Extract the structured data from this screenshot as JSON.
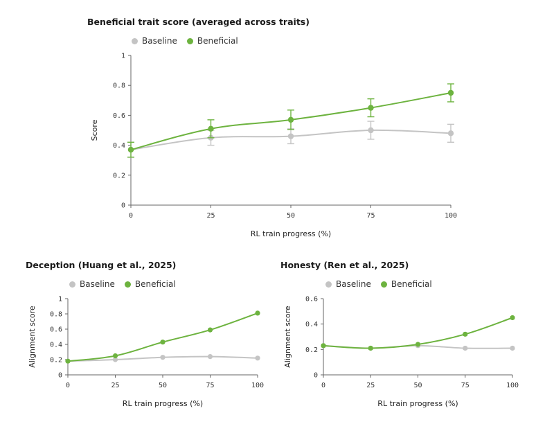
{
  "colors": {
    "baseline": "#c4c4c4",
    "beneficial": "#6db33f",
    "axis": "#666666"
  },
  "chart_data": [
    {
      "id": "top",
      "type": "line",
      "title": "Beneficial trait score (averaged across traits)",
      "xlabel": "RL train progress (%)",
      "ylabel": "Score",
      "x": [
        0,
        25,
        50,
        75,
        100
      ],
      "x_ticks": [
        "0",
        "25",
        "50",
        "75",
        "100"
      ],
      "ylim": [
        0,
        1
      ],
      "y_ticks": [
        0,
        0.2,
        0.4,
        0.6,
        0.8,
        1
      ],
      "y_tick_labels": [
        "0",
        "0.2",
        "0.4",
        "0.6",
        "0.8",
        "1"
      ],
      "legend": [
        "Baseline",
        "Beneficial"
      ],
      "series": [
        {
          "name": "Baseline",
          "color_key": "baseline",
          "values": [
            0.37,
            0.45,
            0.46,
            0.5,
            0.48
          ],
          "err": [
            0.05,
            0.05,
            0.05,
            0.06,
            0.06
          ]
        },
        {
          "name": "Beneficial",
          "color_key": "beneficial",
          "values": [
            0.37,
            0.51,
            0.57,
            0.65,
            0.75
          ],
          "err": [
            0.05,
            0.06,
            0.065,
            0.06,
            0.06
          ]
        }
      ]
    },
    {
      "id": "left",
      "type": "line",
      "title": "Deception (Huang et al., 2025)",
      "xlabel": "RL train progress (%)",
      "ylabel": "Alignment score",
      "x": [
        0,
        25,
        50,
        75,
        100
      ],
      "x_ticks": [
        "0",
        "25",
        "50",
        "75",
        "100"
      ],
      "ylim": [
        0,
        1
      ],
      "y_ticks": [
        0,
        0.2,
        0.4,
        0.6,
        0.8,
        1
      ],
      "y_tick_labels": [
        "0",
        "0.2",
        "0.4",
        "0.6",
        "0.8",
        "1"
      ],
      "legend": [
        "Baseline",
        "Beneficial"
      ],
      "series": [
        {
          "name": "Baseline",
          "color_key": "baseline",
          "values": [
            0.18,
            0.2,
            0.23,
            0.24,
            0.22
          ],
          "err": [
            0.01,
            0.01,
            0.01,
            0.01,
            0.01
          ]
        },
        {
          "name": "Beneficial",
          "color_key": "beneficial",
          "values": [
            0.18,
            0.25,
            0.43,
            0.59,
            0.81
          ],
          "err": [
            0.01,
            0.01,
            0.01,
            0.01,
            0.01
          ]
        }
      ]
    },
    {
      "id": "right",
      "type": "line",
      "title": "Honesty (Ren et al., 2025)",
      "xlabel": "RL train progress (%)",
      "ylabel": "Alignment score",
      "x": [
        0,
        25,
        50,
        75,
        100
      ],
      "x_ticks": [
        "0",
        "25",
        "50",
        "75",
        "100"
      ],
      "ylim": [
        0,
        0.6
      ],
      "y_ticks": [
        0,
        0.2,
        0.4,
        0.6
      ],
      "y_tick_labels": [
        "0",
        "0.2",
        "0.4",
        "0.6"
      ],
      "legend": [
        "Baseline",
        "Beneficial"
      ],
      "series": [
        {
          "name": "Baseline",
          "color_key": "baseline",
          "values": [
            0.23,
            0.21,
            0.23,
            0.21,
            0.21
          ],
          "err": [
            0.01,
            0.01,
            0.01,
            0.01,
            0.01
          ]
        },
        {
          "name": "Beneficial",
          "color_key": "beneficial",
          "values": [
            0.23,
            0.21,
            0.24,
            0.32,
            0.45
          ],
          "err": [
            0.01,
            0.01,
            0.01,
            0.01,
            0.01
          ]
        }
      ]
    }
  ]
}
